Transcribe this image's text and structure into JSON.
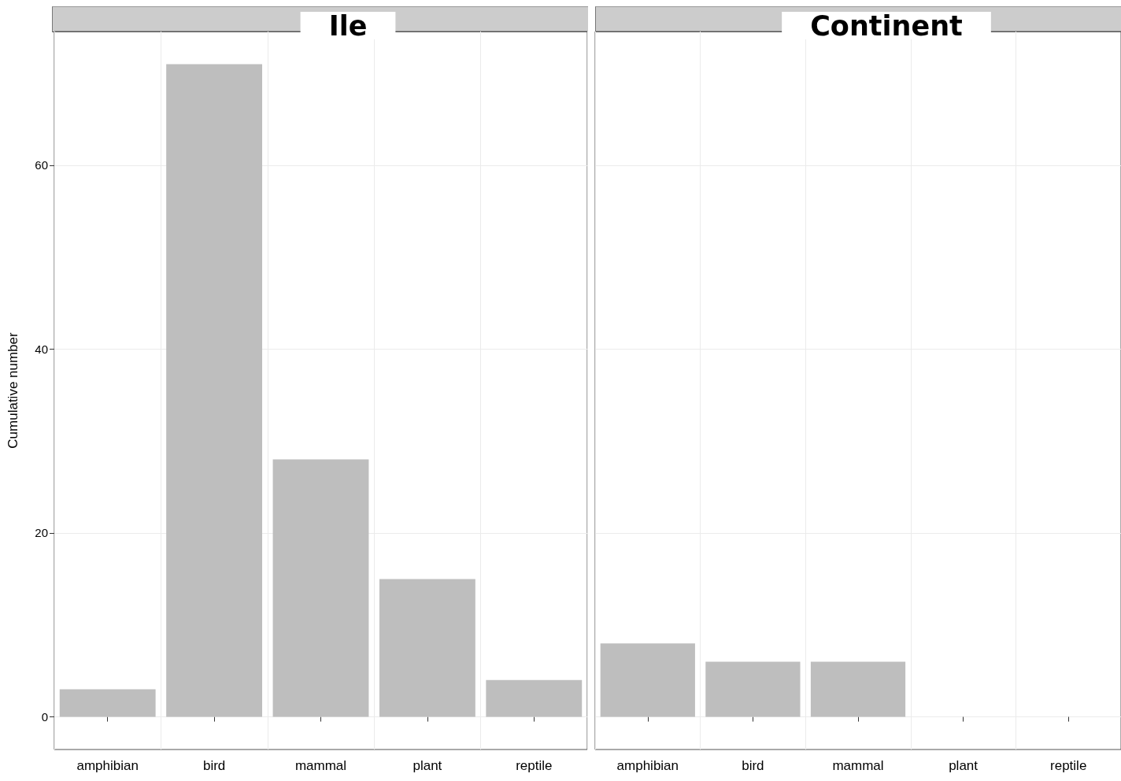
{
  "chart_data": [
    {
      "type": "bar",
      "title": "Ile",
      "ylabel": "Cumulative number",
      "categories": [
        "amphibian",
        "bird",
        "mammal",
        "plant",
        "reptile"
      ],
      "values": [
        3,
        71,
        28,
        15,
        4
      ],
      "color": "#bebebe",
      "ylim": [
        -3.55,
        74.55
      ],
      "yticks": [
        0,
        20,
        40,
        60
      ],
      "grid": true
    },
    {
      "type": "bar",
      "title": "Continent",
      "categories": [
        "amphibian",
        "bird",
        "mammal",
        "plant",
        "reptile"
      ],
      "values": [
        8,
        6,
        6,
        null,
        null
      ],
      "color": "#bebebe",
      "ylim": [
        -3.55,
        74.55
      ],
      "yticks": [
        0,
        20,
        40,
        60
      ],
      "grid": true,
      "tick_labels": "x"
    }
  ]
}
